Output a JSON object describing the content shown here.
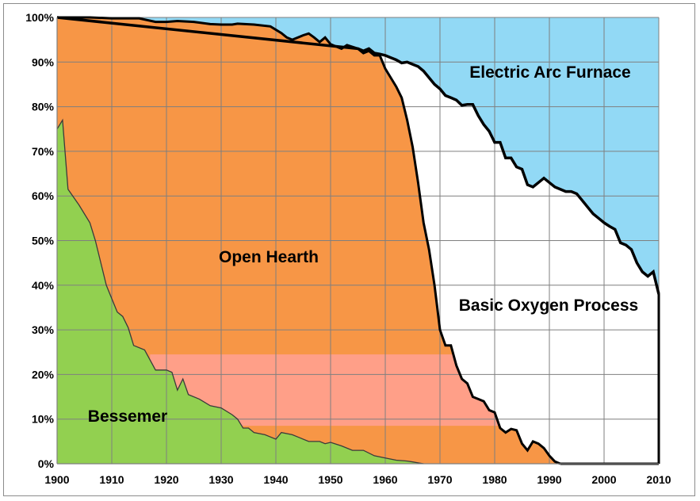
{
  "chart_data": {
    "type": "area",
    "stacked": true,
    "percent_stacked": true,
    "title": "",
    "xlabel": "",
    "ylabel": "",
    "xlim": [
      1900,
      2010
    ],
    "ylim": [
      0,
      100
    ],
    "x_ticks": [
      1900,
      1910,
      1920,
      1930,
      1940,
      1950,
      1960,
      1970,
      1980,
      1990,
      2000,
      2010
    ],
    "y_ticks": [
      0,
      10,
      20,
      30,
      40,
      50,
      60,
      70,
      80,
      90,
      100
    ],
    "x_tick_labels": [
      "1900",
      "1910",
      "1920",
      "1930",
      "1940",
      "1950",
      "1960",
      "1970",
      "1980",
      "1990",
      "2000",
      "2010"
    ],
    "y_tick_labels": [
      "0%",
      "10%",
      "20%",
      "30%",
      "40%",
      "50%",
      "60%",
      "70%",
      "80%",
      "90%",
      "100%"
    ],
    "grid": true,
    "legend": "labels inside areas",
    "series": [
      {
        "name": "Bessemer",
        "color": "#92d050",
        "points": [
          [
            1900,
            75
          ],
          [
            1901,
            77
          ],
          [
            1902,
            61.5
          ],
          [
            1904,
            58
          ],
          [
            1906,
            54
          ],
          [
            1907,
            50
          ],
          [
            1908,
            45
          ],
          [
            1909,
            40
          ],
          [
            1910,
            37
          ],
          [
            1911,
            34
          ],
          [
            1912,
            33
          ],
          [
            1913,
            30.5
          ],
          [
            1914,
            26.5
          ],
          [
            1916,
            25.5
          ],
          [
            1918,
            21
          ],
          [
            1920,
            21
          ],
          [
            1921,
            20.5
          ],
          [
            1922,
            16.5
          ],
          [
            1923,
            19
          ],
          [
            1924,
            15.5
          ],
          [
            1926,
            14.5
          ],
          [
            1928,
            13
          ],
          [
            1930,
            12.5
          ],
          [
            1932,
            11
          ],
          [
            1933,
            10
          ],
          [
            1934,
            8
          ],
          [
            1935,
            8
          ],
          [
            1936,
            7
          ],
          [
            1938,
            6.5
          ],
          [
            1939,
            6
          ],
          [
            1940,
            5.5
          ],
          [
            1941,
            7
          ],
          [
            1943,
            6.5
          ],
          [
            1944,
            6
          ],
          [
            1946,
            5
          ],
          [
            1948,
            5
          ],
          [
            1949,
            4.5
          ],
          [
            1950,
            4.8
          ],
          [
            1952,
            4
          ],
          [
            1954,
            3
          ],
          [
            1956,
            3
          ],
          [
            1958,
            1.8
          ],
          [
            1960,
            1.3
          ],
          [
            1962,
            0.8
          ],
          [
            1964,
            0.6
          ],
          [
            1965,
            0.4
          ],
          [
            1966,
            0.2
          ],
          [
            1967,
            0
          ]
        ]
      },
      {
        "name": "Open Hearth",
        "color": "#f79646",
        "points": [
          [
            1900,
            100
          ],
          [
            1902,
            100
          ],
          [
            1906,
            100
          ],
          [
            1910,
            99.8
          ],
          [
            1915,
            99.8
          ],
          [
            1918,
            99
          ],
          [
            1920,
            99
          ],
          [
            1922,
            99.2
          ],
          [
            1925,
            99
          ],
          [
            1928,
            98.5
          ],
          [
            1930,
            98.4
          ],
          [
            1932,
            98.4
          ],
          [
            1933,
            98.6
          ],
          [
            1936,
            98.4
          ],
          [
            1939,
            98
          ],
          [
            1941,
            96.5
          ],
          [
            1942,
            95.5
          ],
          [
            1943,
            95
          ],
          [
            1945,
            96
          ],
          [
            1946,
            96.4
          ],
          [
            1947,
            95.5
          ],
          [
            1948,
            94.5
          ],
          [
            1949,
            95.5
          ],
          [
            1950,
            94
          ],
          [
            1951,
            93.5
          ],
          [
            1952,
            93
          ],
          [
            1953,
            93.8
          ],
          [
            1955,
            93
          ],
          [
            1956,
            92
          ],
          [
            1957,
            92.5
          ],
          [
            1958,
            91.5
          ],
          [
            1959,
            91.5
          ],
          [
            1960,
            88.5
          ],
          [
            1961,
            86.5
          ],
          [
            1962,
            84.5
          ],
          [
            1963,
            82
          ],
          [
            1964,
            77
          ],
          [
            1965,
            71
          ],
          [
            1966,
            63
          ],
          [
            1967,
            54
          ],
          [
            1968,
            48
          ],
          [
            1969,
            40
          ],
          [
            1970,
            30
          ],
          [
            1971,
            26.5
          ],
          [
            1972,
            26.5
          ],
          [
            1973,
            22
          ],
          [
            1974,
            19
          ],
          [
            1975,
            18
          ],
          [
            1976,
            15
          ],
          [
            1977,
            14.5
          ],
          [
            1978,
            14
          ],
          [
            1979,
            12
          ],
          [
            1980,
            11.5
          ],
          [
            1981,
            8
          ],
          [
            1982,
            7
          ],
          [
            1983,
            7.8
          ],
          [
            1984,
            7.5
          ],
          [
            1985,
            4.5
          ],
          [
            1986,
            3
          ],
          [
            1987,
            5
          ],
          [
            1988,
            4.5
          ],
          [
            1989,
            3.5
          ],
          [
            1990,
            1.8
          ],
          [
            1991,
            0.5
          ],
          [
            1992,
            0
          ]
        ]
      },
      {
        "name": "Basic Oxygen Process",
        "color": "#ffffff",
        "points": [
          [
            1900,
            100
          ],
          [
            1955,
            93
          ],
          [
            1956,
            92.5
          ],
          [
            1957,
            93
          ],
          [
            1958,
            92
          ],
          [
            1959,
            91.8
          ],
          [
            1960,
            91.5
          ],
          [
            1961,
            91
          ],
          [
            1962,
            90.5
          ],
          [
            1963,
            89.8
          ],
          [
            1964,
            90
          ],
          [
            1965,
            89.5
          ],
          [
            1966,
            89
          ],
          [
            1967,
            88
          ],
          [
            1968,
            86.5
          ],
          [
            1969,
            85
          ],
          [
            1970,
            84
          ],
          [
            1971,
            82.5
          ],
          [
            1972,
            82
          ],
          [
            1973,
            81.5
          ],
          [
            1974,
            80.3
          ],
          [
            1975,
            80.5
          ],
          [
            1976,
            80.5
          ],
          [
            1977,
            78
          ],
          [
            1978,
            76
          ],
          [
            1979,
            74.5
          ],
          [
            1980,
            72
          ],
          [
            1981,
            72
          ],
          [
            1982,
            68.5
          ],
          [
            1983,
            68.5
          ],
          [
            1984,
            66.5
          ],
          [
            1985,
            66
          ],
          [
            1986,
            62.5
          ],
          [
            1987,
            62
          ],
          [
            1988,
            63
          ],
          [
            1989,
            64
          ],
          [
            1990,
            63
          ],
          [
            1991,
            62
          ],
          [
            1992,
            61.5
          ],
          [
            1993,
            61
          ],
          [
            1994,
            61
          ],
          [
            1995,
            60.5
          ],
          [
            1996,
            59
          ],
          [
            1997,
            57.5
          ],
          [
            1998,
            56
          ],
          [
            1999,
            55
          ],
          [
            2000,
            54
          ],
          [
            2001,
            53.2
          ],
          [
            2002,
            52.5
          ],
          [
            2003,
            49.5
          ],
          [
            2004,
            49
          ],
          [
            2005,
            48
          ],
          [
            2006,
            45
          ],
          [
            2007,
            43
          ],
          [
            2008,
            42
          ],
          [
            2009,
            43
          ],
          [
            2010,
            38
          ]
        ]
      },
      {
        "name": "Electric Arc Furnace",
        "color": "#92d9f5",
        "points": [
          [
            1900,
            100
          ],
          [
            2010,
            100
          ]
        ]
      }
    ]
  },
  "labels": {
    "eaf": "Electric Arc Furnace",
    "oh": "Open Hearth",
    "bop": "Basic Oxygen Process",
    "bes": "Bessemer"
  },
  "highlight_band": {
    "color": "#ff9f88",
    "y_from": 8.5,
    "y_to": 24.5,
    "x_from": 1917,
    "x_to": 1982
  }
}
